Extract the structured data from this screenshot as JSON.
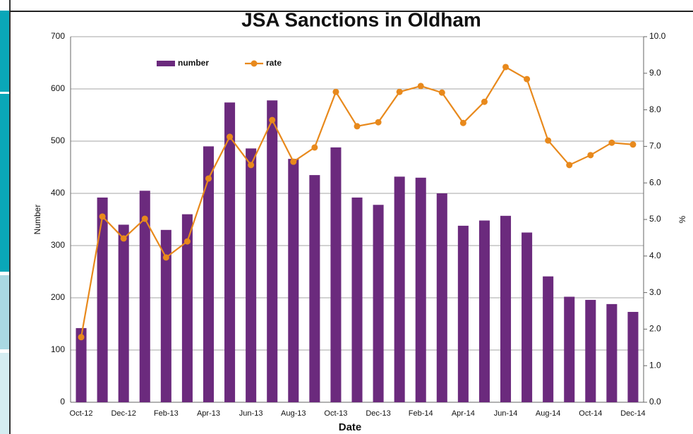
{
  "chart_data": {
    "type": "bar-line",
    "title": "JSA Sanctions in Oldham",
    "x_label": "Date",
    "y_label": "Number",
    "y2_label": "%",
    "categories": [
      "Oct-12",
      null,
      "Dec-12",
      null,
      "Feb-13",
      null,
      "Apr-13",
      null,
      "Jun-13",
      null,
      "Aug-13",
      null,
      "Oct-13",
      null,
      "Dec-13",
      null,
      "Feb-14",
      null,
      "Apr-14",
      null,
      "Jun-14",
      null,
      "Aug-14",
      null,
      "Oct-14",
      null,
      "Dec-14"
    ],
    "series": [
      {
        "name": "number",
        "color": "#6b2a7d",
        "kind": "bar",
        "values": [
          142,
          392,
          340,
          405,
          330,
          360,
          490,
          574,
          486,
          578,
          466,
          435,
          488,
          392,
          378,
          432,
          430,
          400,
          338,
          348,
          357,
          325,
          241,
          202,
          196,
          188,
          173
        ]
      },
      {
        "name": "rate",
        "color": "#e8891c",
        "kind": "line",
        "axis": "y2",
        "values": [
          1.78,
          5.08,
          4.48,
          5.02,
          3.96,
          4.4,
          6.12,
          7.26,
          6.49,
          7.72,
          6.58,
          6.97,
          8.49,
          7.55,
          7.66,
          8.49,
          8.65,
          8.47,
          7.64,
          8.22,
          9.17,
          8.84,
          7.16,
          6.49,
          6.76,
          7.1,
          7.05
        ]
      }
    ],
    "ylim": [
      0,
      700
    ],
    "yticks": [
      0,
      100,
      200,
      300,
      400,
      500,
      600,
      700
    ],
    "y2lim": [
      0,
      10
    ],
    "y2ticks": [
      {
        "value": 0,
        "label": "0.0"
      },
      {
        "value": 1,
        "label": "1.0"
      },
      {
        "value": 2,
        "label": "2.0"
      },
      {
        "value": 3,
        "label": "3.0"
      },
      {
        "value": 4,
        "label": "4.0"
      },
      {
        "value": 5,
        "label": "5.0"
      },
      {
        "value": 6,
        "label": "6.0"
      },
      {
        "value": 7,
        "label": "7.0"
      },
      {
        "value": 8,
        "label": "8.0"
      },
      {
        "value": 9,
        "label": "9.0"
      },
      {
        "value": 10,
        "label": "10.0"
      }
    ],
    "grid": true,
    "legend": "top-left"
  }
}
